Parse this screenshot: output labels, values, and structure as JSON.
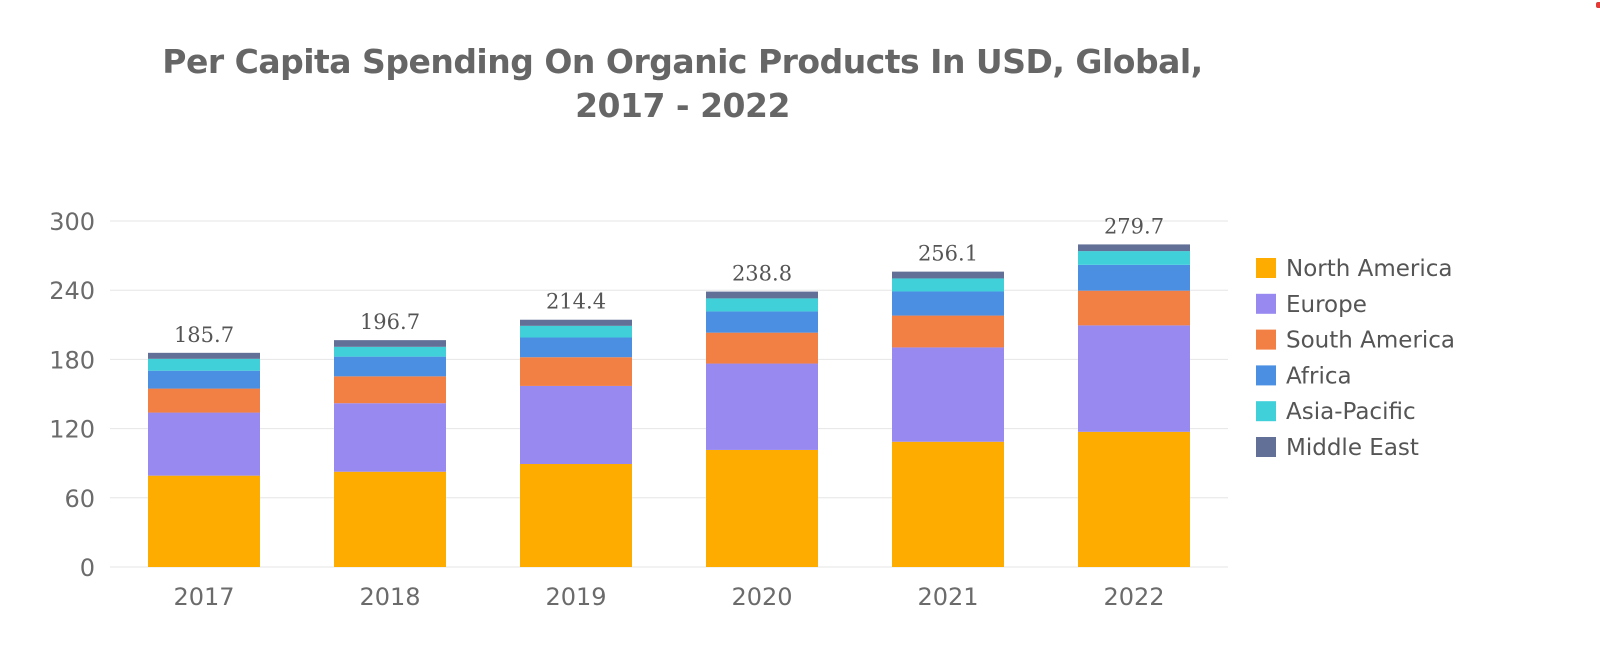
{
  "chart_data": {
    "type": "bar",
    "stacked": true,
    "title": "Per Capita Spending On Organic Products In USD, Global, 2017 - 2022",
    "xlabel": "",
    "ylabel": "",
    "categories": [
      "2017",
      "2018",
      "2019",
      "2020",
      "2021",
      "2022"
    ],
    "ylim": [
      0,
      300
    ],
    "yticks": [
      0,
      60,
      120,
      180,
      240,
      300
    ],
    "totals": [
      "185.7",
      "196.7",
      "214.4",
      "238.8",
      "256.1",
      "279.7"
    ],
    "grid": true,
    "legend_position": "right",
    "series": [
      {
        "name": "North America",
        "color": "#FFAC00",
        "values": [
          79.2,
          82.6,
          89.3,
          101.5,
          108.6,
          117.2
        ]
      },
      {
        "name": "Europe",
        "color": "#9789F0",
        "values": [
          54.7,
          59.4,
          67.7,
          74.9,
          81.8,
          92.3
        ]
      },
      {
        "name": "South America",
        "color": "#F27F43",
        "values": [
          20.8,
          23.3,
          24.9,
          26.8,
          27.6,
          30.1
        ]
      },
      {
        "name": "Africa",
        "color": "#4A8FE2",
        "values": [
          15.5,
          17.1,
          17.1,
          18.4,
          20.9,
          22.4
        ]
      },
      {
        "name": "Asia-Pacific",
        "color": "#3FD0DA",
        "values": [
          10.3,
          8.5,
          10.1,
          11.3,
          11.3,
          11.9
        ]
      },
      {
        "name": "Middle East",
        "color": "#627097",
        "values": [
          5.2,
          5.8,
          5.3,
          5.9,
          5.9,
          5.8
        ]
      }
    ]
  }
}
